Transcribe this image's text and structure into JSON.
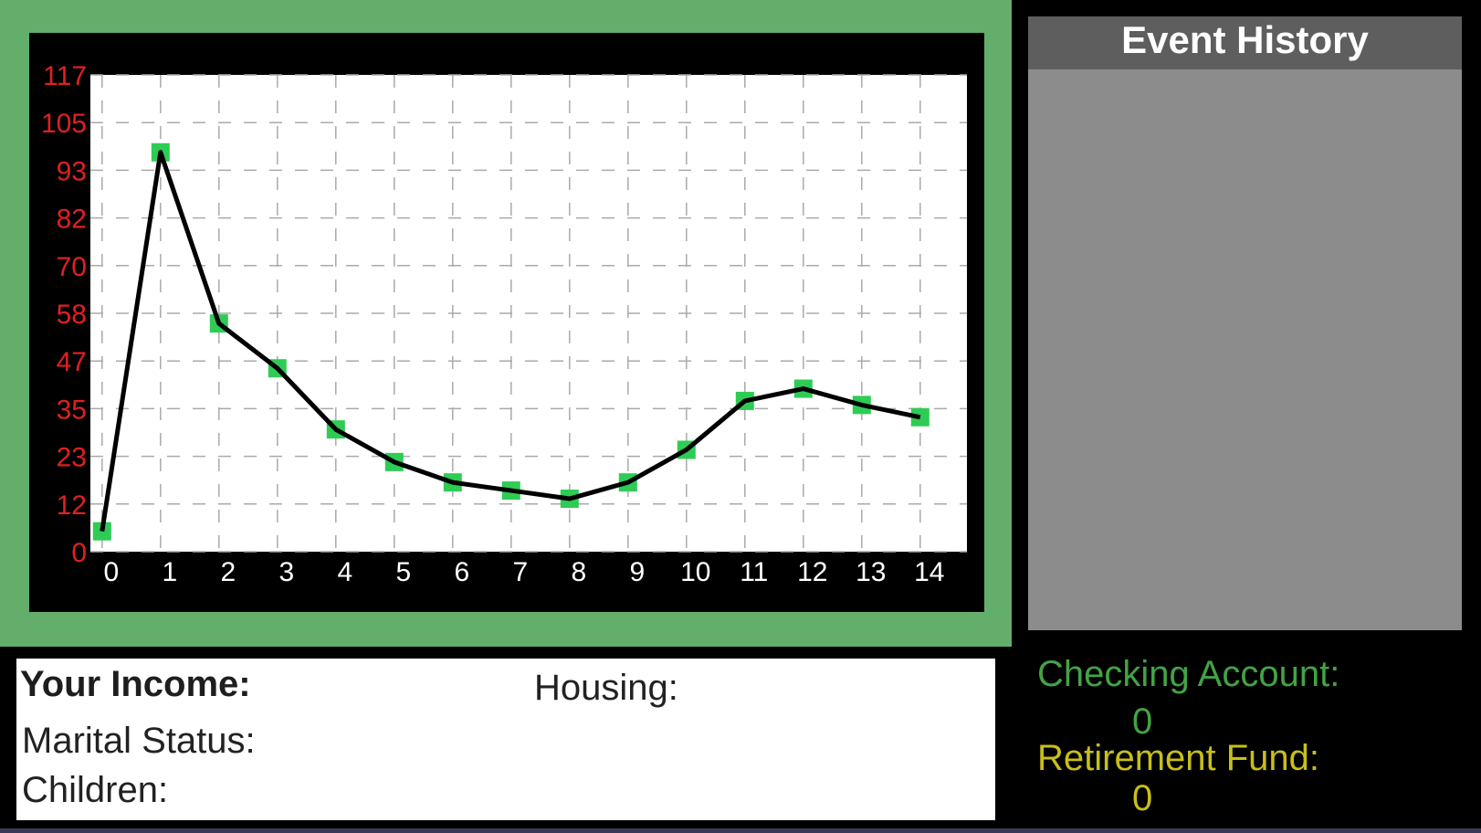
{
  "event_history": {
    "title": "Event History",
    "items": []
  },
  "info": {
    "income_label": "Your Income:",
    "housing_label": "Housing:",
    "marital_label": "Marital Status:",
    "children_label": "Children:"
  },
  "accounts": {
    "checking_label": "Checking Account:",
    "checking_value": "0",
    "retirement_label": "Retirement Fund:",
    "retirement_value": "0"
  },
  "colors": {
    "frame": "#63ae6b",
    "marker": "#2ecc55",
    "line": "#000000",
    "y_tick": "#e0201f",
    "x_tick": "#ffffff",
    "checking": "#43a343",
    "retirement": "#c8bf19"
  },
  "chart_data": {
    "type": "line",
    "x": [
      0,
      1,
      2,
      3,
      4,
      5,
      6,
      7,
      8,
      9,
      10,
      11,
      12,
      13,
      14
    ],
    "y_ticks": [
      "0",
      "12",
      "23",
      "35",
      "47",
      "58",
      "70",
      "82",
      "93",
      "105",
      "117"
    ],
    "x_ticks": [
      "0",
      "1",
      "2",
      "3",
      "4",
      "5",
      "6",
      "7",
      "8",
      "9",
      "10",
      "11",
      "12",
      "13",
      "14"
    ],
    "series": [
      {
        "values": [
          5,
          98,
          56,
          45,
          30,
          22,
          17,
          15,
          13,
          17,
          25,
          37,
          40,
          36,
          33
        ]
      }
    ],
    "ylim": [
      0,
      117
    ],
    "xlim": [
      -0.2,
      14.8
    ],
    "grid": true,
    "markers": "square"
  }
}
